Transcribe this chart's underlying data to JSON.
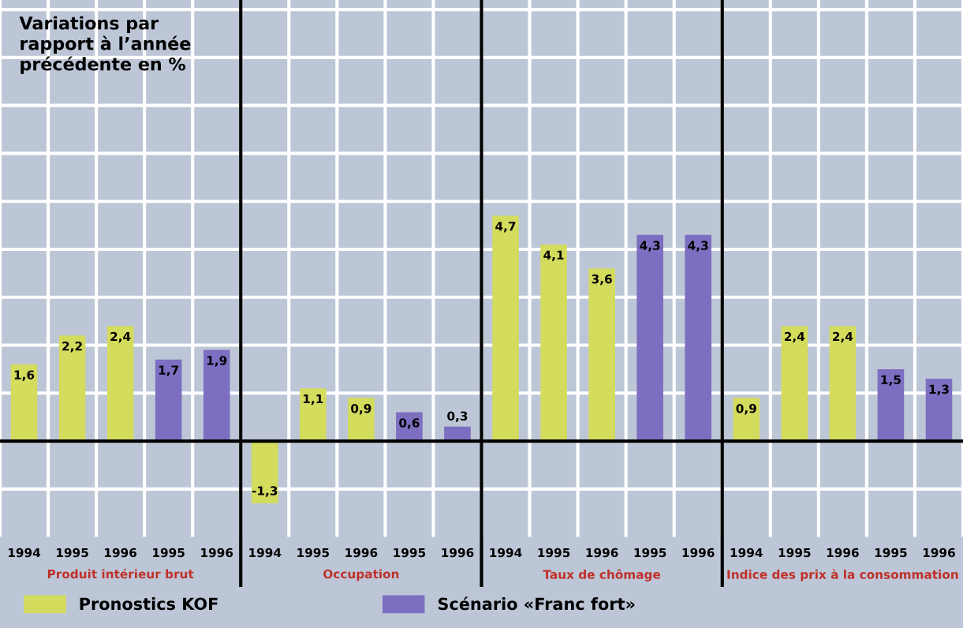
{
  "chart_data": {
    "type": "bar",
    "title": "Variations par\nrapport à l’année\nprécédente en %",
    "categories": [
      "1994",
      "1995",
      "1996",
      "1995",
      "1996",
      "1994",
      "1995",
      "1996",
      "1995",
      "1996",
      "1994",
      "1995",
      "1996",
      "1995",
      "1996",
      "1994",
      "1995",
      "1996",
      "1995",
      "1996"
    ],
    "series": [
      {
        "name": "Pronostics KOF",
        "color": "#d3dc5c",
        "values": [
          1.6,
          2.2,
          2.4,
          null,
          null,
          -1.3,
          1.1,
          0.9,
          null,
          null,
          4.7,
          4.1,
          3.6,
          null,
          null,
          0.9,
          2.4,
          2.4,
          null,
          null
        ],
        "value_labels": [
          "1,6",
          "2,2",
          "2,4",
          null,
          null,
          "-1,3",
          "1,1",
          "0,9",
          null,
          null,
          "4,7",
          "4,1",
          "3,6",
          null,
          null,
          "0,9",
          "2,4",
          "2,4",
          null,
          null
        ]
      },
      {
        "name": "Scénario «Franc fort»",
        "color": "#7c6ec0",
        "values": [
          null,
          null,
          null,
          1.7,
          1.9,
          null,
          null,
          null,
          0.6,
          0.3,
          null,
          null,
          null,
          4.3,
          4.3,
          null,
          null,
          null,
          1.5,
          1.3
        ],
        "value_labels": [
          null,
          null,
          null,
          "1,7",
          "1,9",
          null,
          null,
          null,
          "0,6",
          "0,3",
          null,
          null,
          null,
          "4,3",
          "4,3",
          null,
          null,
          null,
          "1,5",
          "1,3"
        ]
      }
    ],
    "annotations": [
      "Produit intérieur brut",
      "Occupation",
      "Taux de chômage",
      "Indice des prix à la consommation"
    ],
    "grid": true,
    "legend": "bottom",
    "tick_labels": "x",
    "ylim": [
      -2,
      9.2
    ],
    "yticks": [
      {
        "value": -1,
        "label": null
      },
      {
        "value": 0,
        "label": null
      },
      {
        "value": 1,
        "label": null
      },
      {
        "value": 2,
        "label": null
      },
      {
        "value": 3,
        "label": null
      },
      {
        "value": 4,
        "label": null
      },
      {
        "value": 5,
        "label": null
      },
      {
        "value": 6,
        "label": null
      },
      {
        "value": 7,
        "label": null
      },
      {
        "value": 8,
        "label": null
      },
      {
        "value": 9,
        "label": null
      }
    ]
  }
}
